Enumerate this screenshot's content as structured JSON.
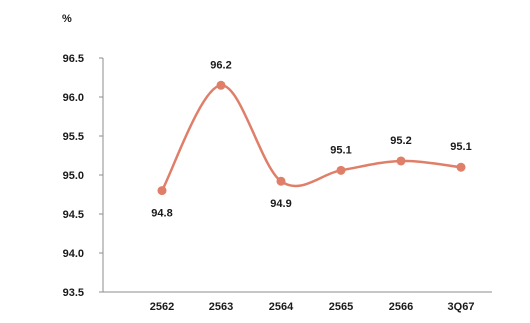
{
  "chart_data": {
    "type": "line",
    "unit_label": "%",
    "categories": [
      "2562",
      "2563",
      "2564",
      "2565",
      "2566",
      "3Q67"
    ],
    "series": [
      {
        "values": [
          94.8,
          96.15,
          94.92,
          95.06,
          95.18,
          95.1
        ],
        "labels": [
          "94.8",
          "96.2",
          "94.9",
          "95.1",
          "95.2",
          "95.1"
        ],
        "color": "#e07f69"
      }
    ],
    "y_ticks": [
      "96.5",
      "96.0",
      "95.5",
      "95.0",
      "94.5",
      "94.0",
      "93.5"
    ],
    "ylim": [
      93.5,
      96.5
    ],
    "grid": false,
    "smooth": true
  }
}
